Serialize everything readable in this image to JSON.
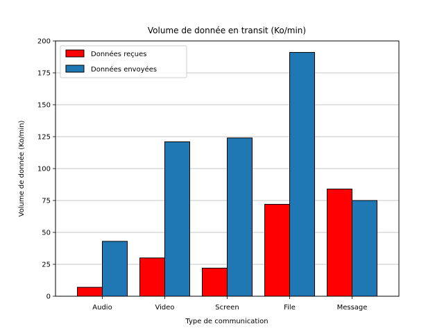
{
  "chart_data": {
    "type": "bar",
    "title": "Volume de donnée en transit (Ko/min)",
    "xlabel": "Type de communication",
    "ylabel": "Volume de donnée (Ko/min)",
    "categories": [
      "Audio",
      "Video",
      "Screen",
      "File",
      "Message"
    ],
    "series": [
      {
        "name": "Données reçues",
        "color": "#ff0000",
        "values": [
          7,
          30,
          22,
          72,
          84
        ]
      },
      {
        "name": "Données envoyées",
        "color": "#1f77b4",
        "values": [
          43,
          121,
          124,
          191,
          75
        ]
      }
    ],
    "ylim": [
      0,
      200
    ],
    "yticks": [
      "0",
      "25",
      "50",
      "75",
      "100",
      "125",
      "150",
      "175",
      "200"
    ],
    "grid": "horizontal",
    "legend_position": "top-left"
  }
}
